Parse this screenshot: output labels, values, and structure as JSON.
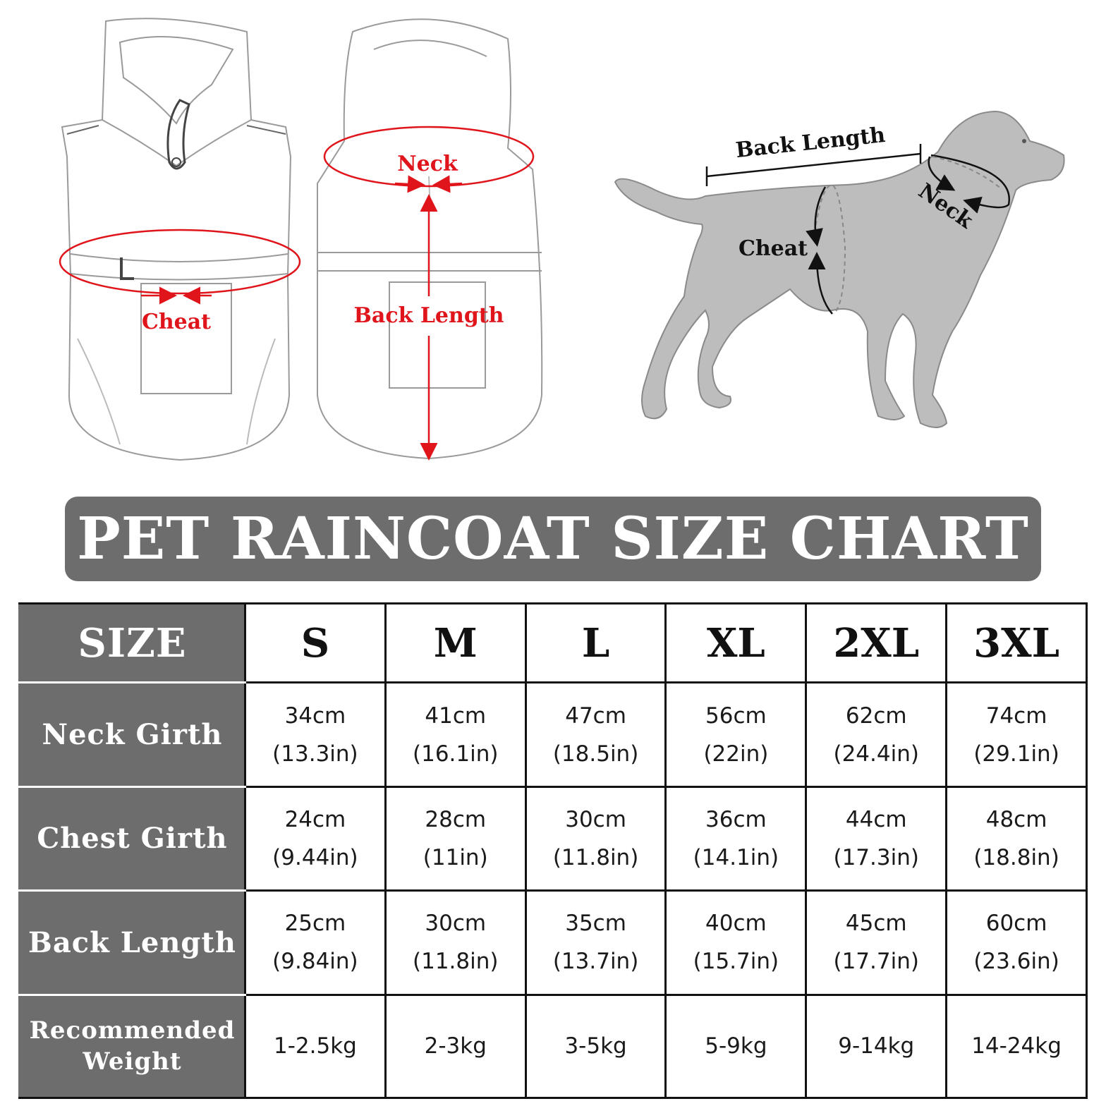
{
  "diagram_labels": {
    "front_coat_chest": "Cheat",
    "back_coat_neck": "Neck",
    "back_coat_length": "Back Length",
    "dog_back_length": "Back Length",
    "dog_neck": "Neck",
    "dog_chest": "Cheat"
  },
  "banner": {
    "title": "PET RAINCOAT SIZE CHART"
  },
  "table": {
    "header_label": "SIZE",
    "sizes": [
      "S",
      "M",
      "L",
      "XL",
      "2XL",
      "3XL"
    ],
    "rows": [
      {
        "label": "Neck Girth",
        "cm": [
          "34cm",
          "41cm",
          "47cm",
          "56cm",
          "62cm",
          "74cm"
        ],
        "in": [
          "(13.3in)",
          "(16.1in)",
          "(18.5in)",
          "(22in)",
          "(24.4in)",
          "(29.1in)"
        ]
      },
      {
        "label": "Chest Girth",
        "cm": [
          "24cm",
          "28cm",
          "30cm",
          "36cm",
          "44cm",
          "48cm"
        ],
        "in": [
          "(9.44in)",
          "(11in)",
          "(11.8in)",
          "(14.1in)",
          "(17.3in)",
          "(18.8in)"
        ]
      },
      {
        "label": "Back Length",
        "cm": [
          "25cm",
          "30cm",
          "35cm",
          "40cm",
          "45cm",
          "60cm"
        ],
        "in": [
          "(9.84in)",
          "(11.8in)",
          "(13.7in)",
          "(15.7in)",
          "(17.7in)",
          "(23.6in)"
        ]
      }
    ],
    "weight_row": {
      "label_line1": "Recommended",
      "label_line2": "Weight",
      "values": [
        "1-2.5kg",
        "2-3kg",
        "3-5kg",
        "5-9kg",
        "9-14kg",
        "14-24kg"
      ]
    }
  },
  "colors": {
    "accent_red": "#e0151b",
    "banner_gray": "#6d6d6d",
    "dog_gray": "#bdbdbd"
  }
}
